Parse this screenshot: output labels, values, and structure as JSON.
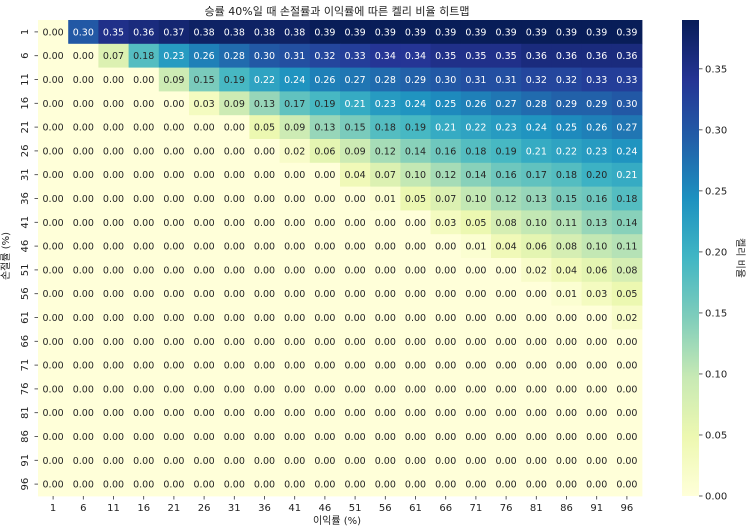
{
  "chart_data": {
    "type": "heatmap",
    "title": "승률 40%일 때 손절률과 이익률에 따른 켈리 비율 히트맵",
    "xlabel": "이익률 (%)",
    "ylabel": "손절률 (%)",
    "colorbar_label": "켈리 비율",
    "colormap": "YlGnBu",
    "value_range": [
      0,
      0.39
    ],
    "colorbar_ticks": [
      "0.00",
      "0.05",
      "0.10",
      "0.15",
      "0.20",
      "0.25",
      "0.30",
      "0.35"
    ],
    "x_categories": [
      "1",
      "6",
      "11",
      "16",
      "21",
      "26",
      "31",
      "36",
      "41",
      "46",
      "51",
      "56",
      "61",
      "66",
      "71",
      "76",
      "81",
      "86",
      "91",
      "96"
    ],
    "y_categories": [
      "1",
      "6",
      "11",
      "16",
      "21",
      "26",
      "31",
      "36",
      "41",
      "46",
      "51",
      "56",
      "61",
      "66",
      "71",
      "76",
      "81",
      "86",
      "91",
      "96"
    ],
    "values": [
      [
        0.0,
        0.3,
        0.35,
        0.36,
        0.37,
        0.38,
        0.38,
        0.38,
        0.38,
        0.39,
        0.39,
        0.39,
        0.39,
        0.39,
        0.39,
        0.39,
        0.39,
        0.39,
        0.39,
        0.39
      ],
      [
        0.0,
        0.0,
        0.07,
        0.18,
        0.23,
        0.26,
        0.28,
        0.3,
        0.31,
        0.32,
        0.33,
        0.34,
        0.34,
        0.35,
        0.35,
        0.35,
        0.36,
        0.36,
        0.36,
        0.36
      ],
      [
        0.0,
        0.0,
        0.0,
        0.0,
        0.09,
        0.15,
        0.19,
        0.22,
        0.24,
        0.26,
        0.27,
        0.28,
        0.29,
        0.3,
        0.31,
        0.31,
        0.32,
        0.32,
        0.33,
        0.33
      ],
      [
        0.0,
        0.0,
        0.0,
        0.0,
        0.0,
        0.03,
        0.09,
        0.13,
        0.17,
        0.19,
        0.21,
        0.23,
        0.24,
        0.25,
        0.26,
        0.27,
        0.28,
        0.29,
        0.29,
        0.3
      ],
      [
        0.0,
        0.0,
        0.0,
        0.0,
        0.0,
        0.0,
        0.0,
        0.05,
        0.09,
        0.13,
        0.15,
        0.18,
        0.19,
        0.21,
        0.22,
        0.23,
        0.24,
        0.25,
        0.26,
        0.27
      ],
      [
        0.0,
        0.0,
        0.0,
        0.0,
        0.0,
        0.0,
        0.0,
        0.0,
        0.02,
        0.06,
        0.09,
        0.12,
        0.14,
        0.16,
        0.18,
        0.19,
        0.21,
        0.22,
        0.23,
        0.24
      ],
      [
        0.0,
        0.0,
        0.0,
        0.0,
        0.0,
        0.0,
        0.0,
        0.0,
        0.0,
        0.0,
        0.04,
        0.07,
        0.1,
        0.12,
        0.14,
        0.16,
        0.17,
        0.18,
        0.2,
        0.21
      ],
      [
        0.0,
        0.0,
        0.0,
        0.0,
        0.0,
        0.0,
        0.0,
        0.0,
        0.0,
        0.0,
        0.0,
        0.01,
        0.05,
        0.07,
        0.1,
        0.12,
        0.13,
        0.15,
        0.16,
        0.18
      ],
      [
        0.0,
        0.0,
        0.0,
        0.0,
        0.0,
        0.0,
        0.0,
        0.0,
        0.0,
        0.0,
        0.0,
        0.0,
        0.0,
        0.03,
        0.05,
        0.08,
        0.1,
        0.11,
        0.13,
        0.14
      ],
      [
        0.0,
        0.0,
        0.0,
        0.0,
        0.0,
        0.0,
        0.0,
        0.0,
        0.0,
        0.0,
        0.0,
        0.0,
        0.0,
        0.0,
        0.01,
        0.04,
        0.06,
        0.08,
        0.1,
        0.11
      ],
      [
        0.0,
        0.0,
        0.0,
        0.0,
        0.0,
        0.0,
        0.0,
        0.0,
        0.0,
        0.0,
        0.0,
        0.0,
        0.0,
        0.0,
        0.0,
        0.0,
        0.02,
        0.04,
        0.06,
        0.08
      ],
      [
        0.0,
        0.0,
        0.0,
        0.0,
        0.0,
        0.0,
        0.0,
        0.0,
        0.0,
        0.0,
        0.0,
        0.0,
        0.0,
        0.0,
        0.0,
        0.0,
        0.0,
        0.01,
        0.03,
        0.05
      ],
      [
        0.0,
        0.0,
        0.0,
        0.0,
        0.0,
        0.0,
        0.0,
        0.0,
        0.0,
        0.0,
        0.0,
        0.0,
        0.0,
        0.0,
        0.0,
        0.0,
        0.0,
        0.0,
        0.0,
        0.02
      ],
      [
        0.0,
        0.0,
        0.0,
        0.0,
        0.0,
        0.0,
        0.0,
        0.0,
        0.0,
        0.0,
        0.0,
        0.0,
        0.0,
        0.0,
        0.0,
        0.0,
        0.0,
        0.0,
        0.0,
        0.0
      ],
      [
        0.0,
        0.0,
        0.0,
        0.0,
        0.0,
        0.0,
        0.0,
        0.0,
        0.0,
        0.0,
        0.0,
        0.0,
        0.0,
        0.0,
        0.0,
        0.0,
        0.0,
        0.0,
        0.0,
        0.0
      ],
      [
        0.0,
        0.0,
        0.0,
        0.0,
        0.0,
        0.0,
        0.0,
        0.0,
        0.0,
        0.0,
        0.0,
        0.0,
        0.0,
        0.0,
        0.0,
        0.0,
        0.0,
        0.0,
        0.0,
        0.0
      ],
      [
        0.0,
        0.0,
        0.0,
        0.0,
        0.0,
        0.0,
        0.0,
        0.0,
        0.0,
        0.0,
        0.0,
        0.0,
        0.0,
        0.0,
        0.0,
        0.0,
        0.0,
        0.0,
        0.0,
        0.0
      ],
      [
        0.0,
        0.0,
        0.0,
        0.0,
        0.0,
        0.0,
        0.0,
        0.0,
        0.0,
        0.0,
        0.0,
        0.0,
        0.0,
        0.0,
        0.0,
        0.0,
        0.0,
        0.0,
        0.0,
        0.0
      ],
      [
        0.0,
        0.0,
        0.0,
        0.0,
        0.0,
        0.0,
        0.0,
        0.0,
        0.0,
        0.0,
        0.0,
        0.0,
        0.0,
        0.0,
        0.0,
        0.0,
        0.0,
        0.0,
        0.0,
        0.0
      ],
      [
        0.0,
        0.0,
        0.0,
        0.0,
        0.0,
        0.0,
        0.0,
        0.0,
        0.0,
        0.0,
        0.0,
        0.0,
        0.0,
        0.0,
        0.0,
        0.0,
        0.0,
        0.0,
        0.0,
        0.0
      ]
    ]
  }
}
